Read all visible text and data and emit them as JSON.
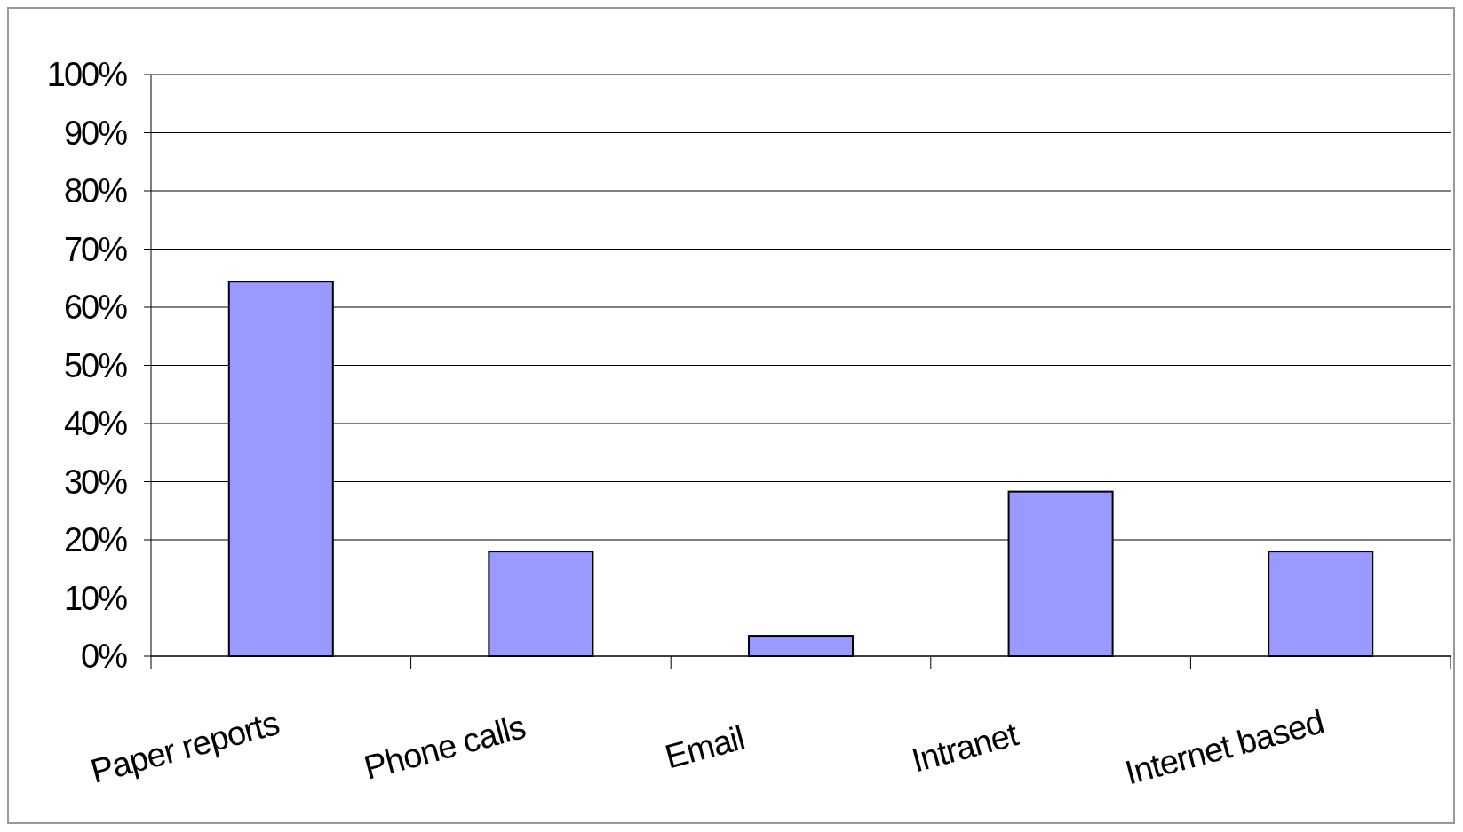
{
  "chart_data": {
    "type": "bar",
    "categories": [
      "Paper reports",
      "Phone calls",
      "Email",
      "Intranet",
      "Internet based"
    ],
    "values": [
      64.4,
      18,
      3.5,
      28.3,
      18
    ],
    "color": "#9999ff",
    "ylim": [
      0,
      100
    ],
    "yticks": [
      {
        "value": 0,
        "label": "0%"
      },
      {
        "value": 10,
        "label": "10%"
      },
      {
        "value": 20,
        "label": "20%"
      },
      {
        "value": 30,
        "label": "30%"
      },
      {
        "value": 40,
        "label": "40%"
      },
      {
        "value": 50,
        "label": "50%"
      },
      {
        "value": 60,
        "label": "60%"
      },
      {
        "value": 70,
        "label": "70%"
      },
      {
        "value": 80,
        "label": "80%"
      },
      {
        "value": 90,
        "label": "90%"
      },
      {
        "value": 100,
        "label": "100%"
      }
    ],
    "grid": "y"
  }
}
